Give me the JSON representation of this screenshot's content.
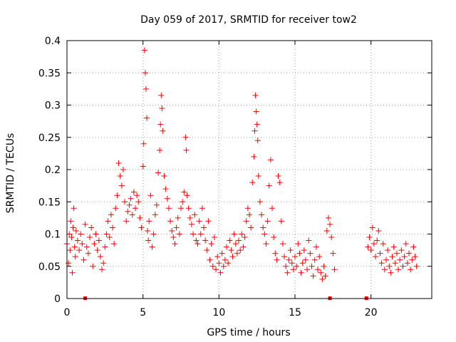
{
  "chart_data": {
    "type": "scatter",
    "title": "Day 059 of 2017, SRMTID for receiver tow2",
    "xlabel": "GPS time / hours",
    "ylabel": "SRMTID / TECUs",
    "xlim": [
      0,
      24
    ],
    "ylim": [
      0,
      0.4
    ],
    "xticks": [
      0,
      5,
      10,
      15,
      20
    ],
    "yticks": [
      0,
      0.05,
      0.1,
      0.15,
      0.2,
      0.25,
      0.3,
      0.35,
      0.4
    ],
    "xtick_labels": [
      "0",
      "5",
      "10",
      "15",
      "20"
    ],
    "ytick_labels": [
      "0",
      "0.05",
      "0.1",
      "0.15",
      "0.2",
      "0.25",
      "0.3",
      "0.35",
      "0.4"
    ],
    "grid": true,
    "marker": "+",
    "color": "#ff0000",
    "series": [
      {
        "name": "SRMTID",
        "points": [
          [
            0.0,
            0.085
          ],
          [
            0.1,
            0.055
          ],
          [
            0.15,
            0.1
          ],
          [
            0.2,
            0.075
          ],
          [
            0.25,
            0.12
          ],
          [
            0.3,
            0.095
          ],
          [
            0.35,
            0.04
          ],
          [
            0.4,
            0.11
          ],
          [
            0.45,
            0.14
          ],
          [
            0.5,
            0.08
          ],
          [
            0.55,
            0.065
          ],
          [
            0.6,
            0.105
          ],
          [
            0.7,
            0.09
          ],
          [
            0.8,
            0.075
          ],
          [
            0.9,
            0.1
          ],
          [
            1.0,
            0.085
          ],
          [
            1.1,
            0.06
          ],
          [
            1.2,
            0.115
          ],
          [
            1.3,
            0.08
          ],
          [
            1.4,
            0.07
          ],
          [
            1.5,
            0.095
          ],
          [
            1.6,
            0.11
          ],
          [
            1.7,
            0.05
          ],
          [
            1.8,
            0.085
          ],
          [
            1.9,
            0.1
          ],
          [
            2.0,
            0.075
          ],
          [
            2.1,
            0.09
          ],
          [
            2.2,
            0.065
          ],
          [
            2.3,
            0.045
          ],
          [
            2.4,
            0.055
          ],
          [
            2.5,
            0.08
          ],
          [
            2.6,
            0.1
          ],
          [
            2.7,
            0.12
          ],
          [
            2.8,
            0.095
          ],
          [
            2.9,
            0.13
          ],
          [
            3.0,
            0.11
          ],
          [
            3.1,
            0.085
          ],
          [
            3.2,
            0.14
          ],
          [
            3.3,
            0.16
          ],
          [
            3.4,
            0.21
          ],
          [
            3.5,
            0.19
          ],
          [
            3.6,
            0.175
          ],
          [
            3.7,
            0.2
          ],
          [
            3.8,
            0.15
          ],
          [
            3.9,
            0.12
          ],
          [
            4.0,
            0.135
          ],
          [
            4.1,
            0.145
          ],
          [
            4.2,
            0.155
          ],
          [
            4.3,
            0.13
          ],
          [
            4.4,
            0.165
          ],
          [
            4.5,
            0.14
          ],
          [
            4.6,
            0.16
          ],
          [
            4.7,
            0.15
          ],
          [
            4.8,
            0.125
          ],
          [
            4.9,
            0.11
          ],
          [
            5.0,
            0.205
          ],
          [
            5.05,
            0.24
          ],
          [
            5.1,
            0.385
          ],
          [
            5.15,
            0.35
          ],
          [
            5.2,
            0.325
          ],
          [
            5.25,
            0.28
          ],
          [
            5.3,
            0.105
          ],
          [
            5.35,
            0.09
          ],
          [
            5.4,
            0.12
          ],
          [
            5.5,
            0.16
          ],
          [
            5.6,
            0.08
          ],
          [
            5.7,
            0.1
          ],
          [
            5.8,
            0.13
          ],
          [
            5.9,
            0.145
          ],
          [
            6.0,
            0.195
          ],
          [
            6.1,
            0.23
          ],
          [
            6.15,
            0.27
          ],
          [
            6.2,
            0.315
          ],
          [
            6.25,
            0.295
          ],
          [
            6.3,
            0.26
          ],
          [
            6.4,
            0.19
          ],
          [
            6.5,
            0.17
          ],
          [
            6.6,
            0.155
          ],
          [
            6.7,
            0.14
          ],
          [
            6.8,
            0.12
          ],
          [
            6.9,
            0.105
          ],
          [
            7.0,
            0.095
          ],
          [
            7.1,
            0.085
          ],
          [
            7.2,
            0.11
          ],
          [
            7.3,
            0.125
          ],
          [
            7.4,
            0.1
          ],
          [
            7.5,
            0.14
          ],
          [
            7.6,
            0.15
          ],
          [
            7.7,
            0.165
          ],
          [
            7.8,
            0.25
          ],
          [
            7.85,
            0.23
          ],
          [
            7.9,
            0.16
          ],
          [
            8.0,
            0.14
          ],
          [
            8.1,
            0.125
          ],
          [
            8.2,
            0.115
          ],
          [
            8.3,
            0.1
          ],
          [
            8.4,
            0.13
          ],
          [
            8.5,
            0.09
          ],
          [
            8.6,
            0.085
          ],
          [
            8.7,
            0.12
          ],
          [
            8.8,
            0.1
          ],
          [
            8.9,
            0.14
          ],
          [
            9.0,
            0.11
          ],
          [
            9.1,
            0.09
          ],
          [
            9.2,
            0.075
          ],
          [
            9.3,
            0.12
          ],
          [
            9.4,
            0.06
          ],
          [
            9.5,
            0.085
          ],
          [
            9.6,
            0.05
          ],
          [
            9.7,
            0.095
          ],
          [
            9.8,
            0.045
          ],
          [
            9.9,
            0.065
          ],
          [
            10.0,
            0.055
          ],
          [
            10.1,
            0.04
          ],
          [
            10.2,
            0.07
          ],
          [
            10.3,
            0.05
          ],
          [
            10.4,
            0.06
          ],
          [
            10.5,
            0.08
          ],
          [
            10.6,
            0.055
          ],
          [
            10.7,
            0.09
          ],
          [
            10.8,
            0.075
          ],
          [
            10.9,
            0.065
          ],
          [
            11.0,
            0.1
          ],
          [
            11.1,
            0.085
          ],
          [
            11.2,
            0.07
          ],
          [
            11.3,
            0.09
          ],
          [
            11.4,
            0.075
          ],
          [
            11.5,
            0.1
          ],
          [
            11.6,
            0.08
          ],
          [
            11.7,
            0.095
          ],
          [
            11.8,
            0.12
          ],
          [
            11.9,
            0.14
          ],
          [
            12.0,
            0.13
          ],
          [
            12.1,
            0.11
          ],
          [
            12.2,
            0.18
          ],
          [
            12.3,
            0.22
          ],
          [
            12.35,
            0.26
          ],
          [
            12.4,
            0.315
          ],
          [
            12.45,
            0.29
          ],
          [
            12.5,
            0.27
          ],
          [
            12.55,
            0.245
          ],
          [
            12.6,
            0.19
          ],
          [
            12.7,
            0.15
          ],
          [
            12.8,
            0.13
          ],
          [
            12.9,
            0.11
          ],
          [
            13.0,
            0.1
          ],
          [
            13.1,
            0.085
          ],
          [
            13.2,
            0.12
          ],
          [
            13.3,
            0.175
          ],
          [
            13.4,
            0.215
          ],
          [
            13.5,
            0.14
          ],
          [
            13.6,
            0.095
          ],
          [
            13.7,
            0.07
          ],
          [
            13.8,
            0.06
          ],
          [
            13.9,
            0.19
          ],
          [
            14.0,
            0.18
          ],
          [
            14.1,
            0.12
          ],
          [
            14.2,
            0.085
          ],
          [
            14.3,
            0.065
          ],
          [
            14.4,
            0.05
          ],
          [
            14.5,
            0.04
          ],
          [
            14.6,
            0.06
          ],
          [
            14.7,
            0.075
          ],
          [
            14.8,
            0.055
          ],
          [
            14.9,
            0.045
          ],
          [
            15.0,
            0.065
          ],
          [
            15.1,
            0.05
          ],
          [
            15.2,
            0.085
          ],
          [
            15.3,
            0.07
          ],
          [
            15.4,
            0.04
          ],
          [
            15.5,
            0.055
          ],
          [
            15.6,
            0.075
          ],
          [
            15.7,
            0.06
          ],
          [
            15.8,
            0.045
          ],
          [
            15.9,
            0.09
          ],
          [
            16.0,
            0.07
          ],
          [
            16.1,
            0.05
          ],
          [
            16.2,
            0.035
          ],
          [
            16.3,
            0.06
          ],
          [
            16.4,
            0.08
          ],
          [
            16.5,
            0.045
          ],
          [
            16.6,
            0.065
          ],
          [
            16.7,
            0.04
          ],
          [
            16.8,
            0.03
          ],
          [
            16.9,
            0.05
          ],
          [
            17.0,
            0.035
          ],
          [
            17.1,
            0.105
          ],
          [
            17.2,
            0.125
          ],
          [
            17.3,
            0.115
          ],
          [
            17.4,
            0.095
          ],
          [
            17.5,
            0.07
          ],
          [
            17.6,
            0.045
          ],
          [
            19.8,
            0.08
          ],
          [
            19.9,
            0.095
          ],
          [
            20.0,
            0.075
          ],
          [
            20.1,
            0.11
          ],
          [
            20.2,
            0.085
          ],
          [
            20.3,
            0.065
          ],
          [
            20.4,
            0.09
          ],
          [
            20.5,
            0.105
          ],
          [
            20.6,
            0.07
          ],
          [
            20.7,
            0.055
          ],
          [
            20.8,
            0.085
          ],
          [
            20.9,
            0.045
          ],
          [
            21.0,
            0.06
          ],
          [
            21.1,
            0.075
          ],
          [
            21.2,
            0.05
          ],
          [
            21.3,
            0.04
          ],
          [
            21.4,
            0.065
          ],
          [
            21.5,
            0.08
          ],
          [
            21.6,
            0.055
          ],
          [
            21.7,
            0.07
          ],
          [
            21.8,
            0.045
          ],
          [
            21.9,
            0.06
          ],
          [
            22.0,
            0.075
          ],
          [
            22.1,
            0.05
          ],
          [
            22.2,
            0.065
          ],
          [
            22.3,
            0.085
          ],
          [
            22.4,
            0.055
          ],
          [
            22.5,
            0.07
          ],
          [
            22.6,
            0.045
          ],
          [
            22.7,
            0.06
          ],
          [
            22.8,
            0.08
          ],
          [
            22.9,
            0.065
          ],
          [
            23.0,
            0.05
          ]
        ]
      }
    ],
    "zero_markers": [
      1.2,
      17.3,
      19.7
    ]
  }
}
